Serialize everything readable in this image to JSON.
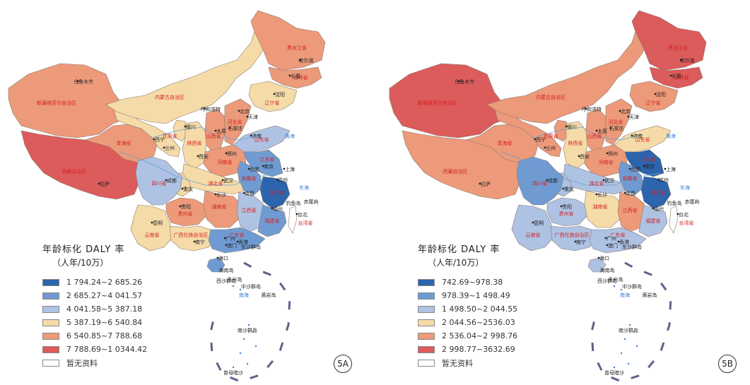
{
  "panels": [
    {
      "id": "5A",
      "legend_title": "年龄标化 DALY 率",
      "legend_subtitle": "（人年/10万）",
      "legend": [
        {
          "range": "1 794.24~2 685.26",
          "color": "#2c64ad"
        },
        {
          "range": "2 685.27~4 041.57",
          "color": "#6f9bd2"
        },
        {
          "range": "4 041.58~5 387.18",
          "color": "#aec2e3"
        },
        {
          "range": "5 387.19~6 540.84",
          "color": "#f5dba8"
        },
        {
          "range": "6 540.85~7 788.68",
          "color": "#ec9a7a"
        },
        {
          "range": "7 788.69~1 0344.42",
          "color": "#dc5b5b"
        },
        {
          "range": "暂无资料",
          "color": "#ffffff"
        }
      ],
      "region_colors": {
        "xinjiang": "#ec9a7a",
        "tibet": "#dc5b5b",
        "qinghai": "#ec9a7a",
        "gansu": "#f5dba8",
        "neimenggu": "#f5dba8",
        "heilongjiang": "#ec9a7a",
        "jilin": "#ec9a7a",
        "liaoning": "#f5dba8",
        "sichuan": "#aec2e3",
        "yunnan": "#f5dba8",
        "guizhou": "#ec9a7a",
        "guangxi": "#f5dba8",
        "guangdong": "#6f9bd2",
        "hunan": "#ec9a7a",
        "hubei": "#f5dba8",
        "jiangxi": "#aec2e3",
        "fujian": "#6f9bd2",
        "zhejiang": "#2c64ad",
        "anhui": "#6f9bd2",
        "jiangsu": "#6f9bd2",
        "shandong": "#aec2e3",
        "henan": "#ec9a7a",
        "hebei": "#ec9a7a",
        "shanxi": "#ec9a7a",
        "shaanxi": "#f5dba8",
        "ningxia": "#f5dba8",
        "chongqing": "#f5dba8",
        "hainan": "#6f9bd2",
        "taiwan": "#ffffff"
      }
    },
    {
      "id": "5B",
      "legend_title": "年龄标化 DALY 率",
      "legend_subtitle": "（人年/10万）",
      "legend": [
        {
          "range": "742.69~978.38",
          "color": "#2c64ad"
        },
        {
          "range": "978.39~1 498.49",
          "color": "#6f9bd2"
        },
        {
          "range": "1 498.50~2 044.55",
          "color": "#aec2e3"
        },
        {
          "range": "2 044.56~2536.03",
          "color": "#f5dba8"
        },
        {
          "range": "2 536.04~2 998.76",
          "color": "#ec9a7a"
        },
        {
          "range": "2 998.77~3632.69",
          "color": "#dc5b5b"
        },
        {
          "range": "暂无资料",
          "color": "#ffffff"
        }
      ],
      "region_colors": {
        "xinjiang": "#dc5b5b",
        "tibet": "#ec9a7a",
        "qinghai": "#ec9a7a",
        "gansu": "#ec9a7a",
        "neimenggu": "#ec9a7a",
        "heilongjiang": "#dc5b5b",
        "jilin": "#dc5b5b",
        "liaoning": "#ec9a7a",
        "sichuan": "#6f9bd2",
        "yunnan": "#aec2e3",
        "guizhou": "#aec2e3",
        "guangxi": "#aec2e3",
        "guangdong": "#aec2e3",
        "hunan": "#f5dba8",
        "hubei": "#aec2e3",
        "jiangxi": "#ec9a7a",
        "fujian": "#aec2e3",
        "zhejiang": "#2c64ad",
        "anhui": "#6f9bd2",
        "jiangsu": "#2c64ad",
        "shandong": "#f5dba8",
        "henan": "#ec9a7a",
        "hebei": "#ec9a7a",
        "shanxi": "#ec9a7a",
        "shaanxi": "#f5dba8",
        "ningxia": "#ec9a7a",
        "chongqing": "#aec2e3",
        "hainan": "#aec2e3",
        "taiwan": "#ffffff"
      }
    }
  ],
  "city_labels": [
    "乌鲁木齐",
    "拉萨",
    "哈尔滨",
    "长春",
    "沈阳",
    "呼和浩特",
    "北京",
    "天津",
    "石家庄",
    "太原",
    "银川",
    "西宁",
    "兰州",
    "西安",
    "郑州",
    "济南",
    "南京",
    "合肥",
    "上海",
    "杭州",
    "武汉",
    "长沙",
    "南昌",
    "福州",
    "台北",
    "成都",
    "重庆",
    "贵阳",
    "昆明",
    "南宁",
    "广州",
    "香港",
    "澳门",
    "海口"
  ],
  "province_labels": [
    "新疆维吾尔自治区",
    "西藏自治区",
    "青海省",
    "甘肃省",
    "内蒙古自治区",
    "黑龙江省",
    "吉林省",
    "辽宁省",
    "四川省",
    "云南省",
    "贵州省",
    "广西壮族自治区",
    "广东省",
    "湖南省",
    "湖北省",
    "江西省",
    "福建省",
    "浙江省",
    "安徽省",
    "江苏省",
    "山东省",
    "河南省",
    "河北省",
    "山西省",
    "陕西省",
    "台湾省"
  ],
  "sea_labels": [
    "黄海",
    "东海",
    "南海"
  ],
  "island_labels": [
    "海南岛",
    "西沙群岛",
    "中沙群岛",
    "黄岩岛",
    "东沙群岛",
    "南沙群岛",
    "钓鱼岛",
    "赤尾屿",
    "永兴岛",
    "曾母暗沙"
  ]
}
